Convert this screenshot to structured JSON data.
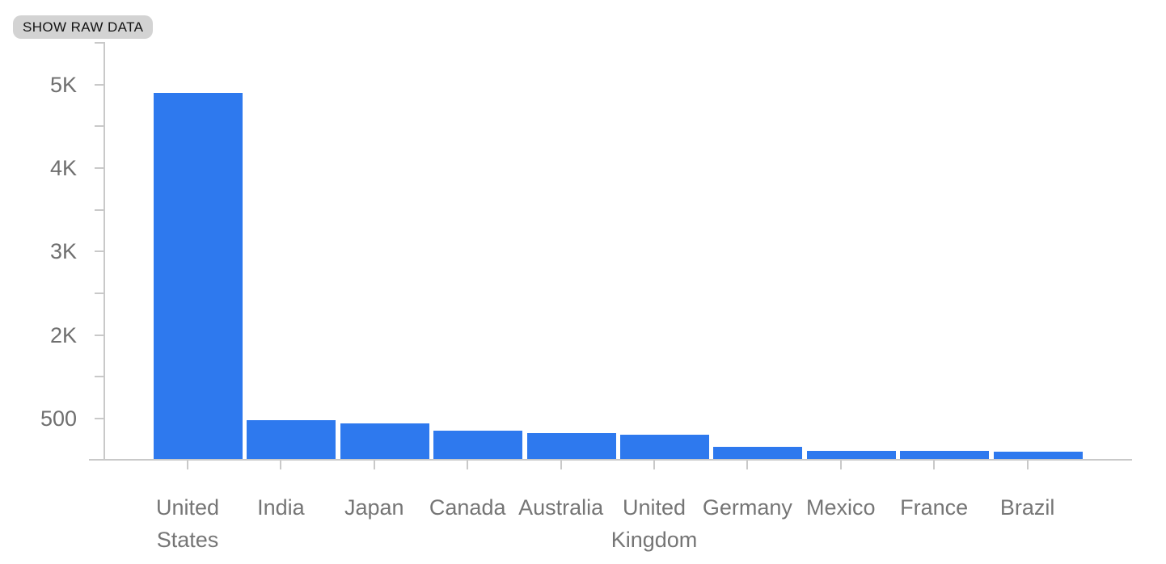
{
  "toolbar": {
    "show_raw_data_label": "SHOW RAW DATA"
  },
  "chart_data": {
    "type": "bar",
    "title": "",
    "xlabel": "",
    "ylabel": "",
    "categories": [
      "United States",
      "India",
      "Japan",
      "Canada",
      "Australia",
      "United Kingdom",
      "Germany",
      "Mexico",
      "France",
      "Brazil"
    ],
    "values": [
      4890,
      470,
      430,
      345,
      315,
      295,
      145,
      100,
      95,
      90
    ],
    "y_tick_labels": [
      "5K",
      "4K",
      "3K",
      "2K",
      "500"
    ],
    "y_tick_values": [
      5000,
      4000,
      3000,
      2000,
      500
    ],
    "ylim": [
      0,
      5500
    ],
    "grid": false,
    "legend": "none",
    "colors": {
      "bar": "#2E79EE",
      "axis": "#C9C9C9",
      "y_tick_label": "#6F6F6F",
      "x_tick_label": "#757575",
      "chip_bg": "#D3D3D3",
      "chip_text": "#131313"
    }
  }
}
